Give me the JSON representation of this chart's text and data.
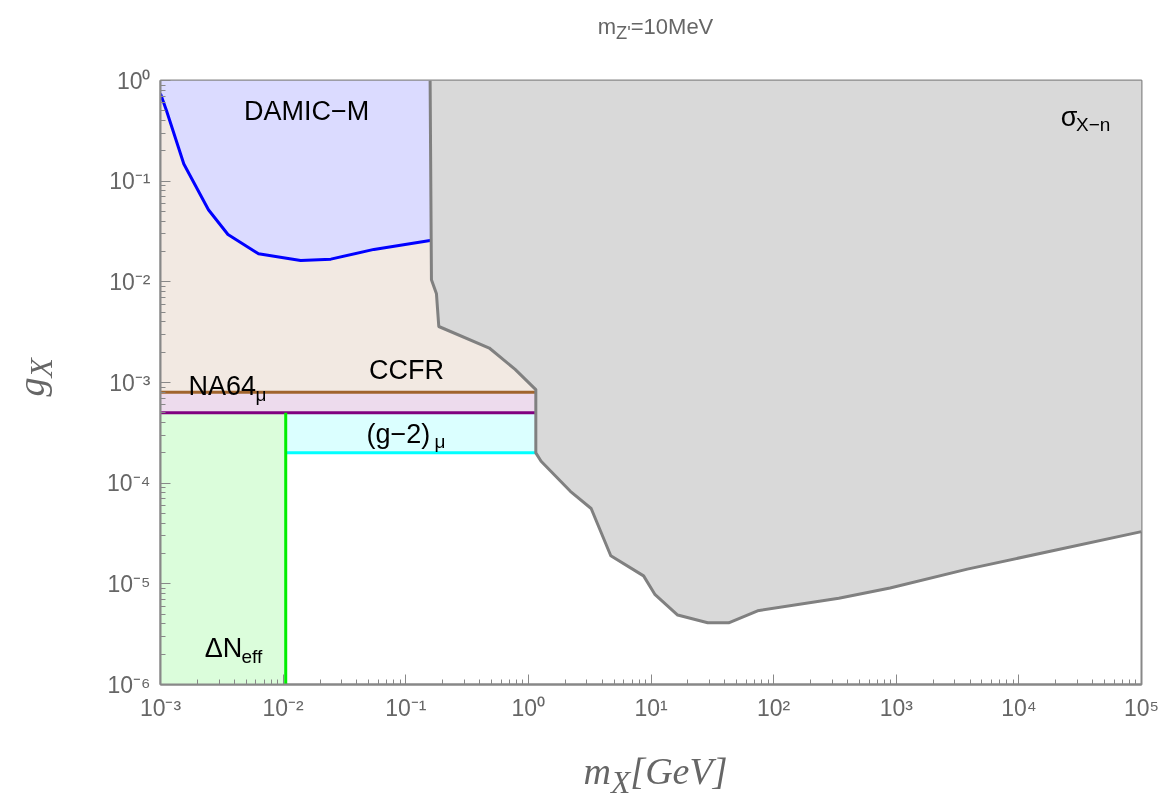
{
  "chart_data": {
    "type": "line",
    "title": "m$_{Z'}$=10MeV",
    "xlabel": "m$_{X}$[GeV]",
    "ylabel": "g$_{X}$",
    "log": "xy",
    "grid": false,
    "xlim": [
      0.001,
      100000
    ],
    "ylim": [
      1e-06,
      1
    ],
    "xticks": [
      {
        "value": 0.001,
        "label": "10⁻³"
      },
      {
        "value": 0.01,
        "label": "10⁻²"
      },
      {
        "value": 0.1,
        "label": "10⁻¹"
      },
      {
        "value": 1,
        "label": "10⁰"
      },
      {
        "value": 10,
        "label": "10¹"
      },
      {
        "value": 100,
        "label": "10²"
      },
      {
        "value": 1000,
        "label": "10³"
      },
      {
        "value": 10000,
        "label": "10⁴"
      },
      {
        "value": 100000,
        "label": "10⁵"
      }
    ],
    "yticks": [
      {
        "value": 1e-06,
        "label": "10⁻⁶"
      },
      {
        "value": 1e-05,
        "label": "10⁻⁵"
      },
      {
        "value": 0.0001,
        "label": "10⁻⁴"
      },
      {
        "value": 0.001,
        "label": "10⁻³"
      },
      {
        "value": 0.01,
        "label": "10⁻²"
      },
      {
        "value": 0.1,
        "label": "10⁻¹"
      },
      {
        "value": 1,
        "label": "10⁰"
      }
    ],
    "series": [
      {
        "color": "#a0642d",
        "x": [
          0.001,
          0.00112,
          0.00155,
          0.00246,
          0.00355,
          0.0063,
          0.0139,
          0.0245,
          0.055,
          0.158,
          0.162,
          0.178,
          0.186,
          0.48,
          0.78,
          1.15
        ],
        "values": [
          0.0008,
          0.0008,
          0.0008,
          0.0008,
          0.0008,
          0.0008,
          0.0008,
          0.0008,
          0.0008,
          0.0008,
          0.0008,
          0.0008,
          0.0008,
          0.0008,
          0.0008,
          0.0008
        ],
        "lower": [
          0.0008,
          0.0008,
          0.0008,
          0.0008,
          0.0008,
          0.0008,
          0.0008,
          0.0008,
          0.0008,
          0.0008,
          0.0008,
          0.0008,
          0.0008,
          0.0008,
          0.0008,
          0.0008
        ],
        "upper": [
          0.74,
          0.5,
          0.148,
          0.052,
          0.0295,
          0.019,
          0.0163,
          0.0168,
          0.021,
          0.0257,
          0.0105,
          0.0076,
          0.0036,
          0.0022,
          0.00135,
          0.00085
        ]
      },
      {
        "color": "#0000ff",
        "x": [
          0.001,
          0.00112,
          0.00155,
          0.00246,
          0.00355,
          0.0063,
          0.0139,
          0.0245,
          0.055,
          0.158
        ],
        "values": [
          0.74,
          0.5,
          0.148,
          0.052,
          0.0295,
          0.019,
          0.0163,
          0.0168,
          0.021,
          0.0257
        ],
        "lower": [
          0.74,
          0.5,
          0.148,
          0.052,
          0.0295,
          0.019,
          0.0163,
          0.0168,
          0.021,
          0.0257
        ],
        "upper": [
          1,
          1,
          1,
          1,
          1,
          1,
          1,
          1,
          1,
          1
        ]
      },
      {
        "color": "#800080",
        "x": [
          0.001,
          1.15
        ],
        "values": [
          0.0005,
          0.0005
        ],
        "lower": [
          0.0005,
          0.0005
        ],
        "upper": [
          0.0008,
          0.0008
        ]
      },
      {
        "color": "#00ffff",
        "x": [
          0.0105,
          1.15
        ],
        "values": [
          0.0002,
          0.0002
        ],
        "lower": [
          0.0002,
          0.0002
        ],
        "upper": [
          0.0005,
          0.0005
        ]
      },
      {
        "color": "#00ee00",
        "x": [
          0.001,
          0.0105,
          0.0105
        ],
        "values": [
          null,
          0.0005,
          1e-06
        ],
        "lower": [
          1e-06,
          1e-06,
          1e-06
        ],
        "upper": [
          0.0005,
          0.0005,
          0.0005
        ]
      },
      {
        "color": "#808080",
        "x": [
          0.158,
          0.162,
          0.178,
          0.186,
          0.48,
          0.78,
          1.15,
          1.15,
          1.27,
          2.2,
          3.25,
          4.7,
          8.7,
          10.8,
          16.5,
          29,
          43,
          74,
          340,
          890,
          3800,
          100000
        ],
        "values": [
          1,
          0.0105,
          0.0076,
          0.0036,
          0.0022,
          0.00135,
          0.00085,
          0.0002,
          0.000165,
          8.3e-05,
          5.6e-05,
          1.9e-05,
          1.2e-05,
          7.8e-06,
          4.9e-06,
          4.1e-06,
          4.1e-06,
          5.4e-06,
          7.2e-06,
          9.1e-06,
          1.4e-05,
          3.3e-05
        ],
        "lower": [
          1,
          0.0105,
          0.0076,
          0.0036,
          0.0022,
          0.00135,
          0.00085,
          0.0002,
          0.000165,
          8.3e-05,
          5.6e-05,
          1.9e-05,
          1.2e-05,
          7.8e-06,
          4.9e-06,
          4.1e-06,
          4.1e-06,
          5.4e-06,
          7.2e-06,
          9.1e-06,
          1.4e-05,
          3.3e-05
        ],
        "upper": [
          1,
          1,
          1,
          1,
          1,
          1,
          1,
          1,
          1,
          1,
          1,
          1,
          1,
          1,
          1,
          1,
          1,
          1,
          1,
          1,
          1,
          1
        ]
      }
    ],
    "annotations": [
      "DAMIC−M",
      "CCFR",
      "NA64$_{μ}$",
      "(g−2)$_{μ}$",
      "ΔN$_{eff}$",
      "σ$_{X−n}$"
    ]
  }
}
